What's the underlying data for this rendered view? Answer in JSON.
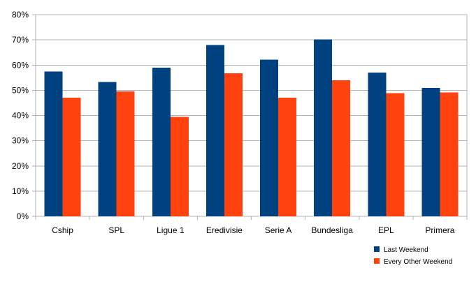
{
  "chart_data": {
    "type": "bar",
    "categories": [
      "Cship",
      "SPL",
      "Ligue 1",
      "Eredivisie",
      "Serie A",
      "Bundesliga",
      "EPL",
      "Primera"
    ],
    "series": [
      {
        "name": "Last Weekend",
        "values": [
          57.5,
          53.3,
          59,
          67.9,
          62.2,
          70.2,
          57,
          51
        ],
        "color": "#00427f"
      },
      {
        "name": "Every Other Weekend",
        "values": [
          47,
          49.6,
          39.4,
          56.8,
          47,
          54,
          48.8,
          49.2
        ],
        "color": "#ff420e"
      }
    ],
    "ylim": [
      0,
      80
    ],
    "yticks": [
      "0%",
      "10%",
      "20%",
      "30%",
      "40%",
      "50%",
      "60%",
      "70%",
      "80%"
    ],
    "grid": true,
    "legend_position": "bottom-right"
  }
}
